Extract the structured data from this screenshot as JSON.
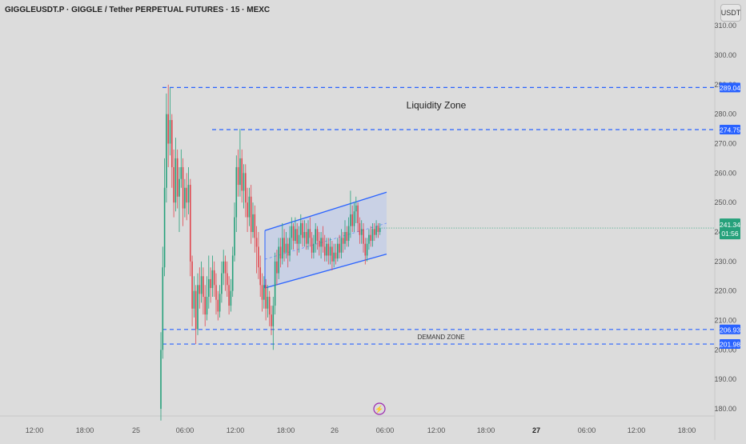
{
  "header": {
    "title": "GIGGLEUSDT.P · GIGGLE / Tether PERPETUAL FUTURES · 15 · MEXC",
    "currency": "USDT"
  },
  "colors": {
    "background": "#dcdcdc",
    "up": "#26a17b",
    "down": "#e0484f",
    "level": "#2962ff",
    "channel_fill": "#c3cde8"
  },
  "chart_data": {
    "type": "candlestick",
    "ylim": [
      175,
      313
    ],
    "y_ticks": [
      "180.00",
      "190.00",
      "200.00",
      "210.00",
      "220.00",
      "230.00",
      "240.00",
      "250.00",
      "260.00",
      "270.00",
      "280.00",
      "290.00",
      "300.00",
      "310.00"
    ],
    "x_ticks": [
      "12:00",
      "18:00",
      "25",
      "06:00",
      "12:00",
      "18:00",
      "26",
      "06:00",
      "12:00",
      "18:00",
      "27",
      "06:00",
      "12:00",
      "18:00"
    ],
    "x_ticks_bold": [
      "27"
    ],
    "levels": [
      {
        "price": 289.04,
        "label": "289.04",
        "start": "03:00 on 25"
      },
      {
        "price": 274.75,
        "label": "274.75",
        "start": "09:00 on 25"
      },
      {
        "price": 206.93,
        "label": "206.93",
        "start": "03:00 on 25"
      },
      {
        "price": 201.98,
        "label": "201.98",
        "start": "03:00 on 25"
      }
    ],
    "annotations": [
      {
        "text": "Liquidity Zone",
        "price": 283
      },
      {
        "text": "DEMAND ZONE",
        "price": 204.5
      }
    ],
    "last_price": {
      "value": "241.34",
      "countdown": "01:56"
    },
    "channel": {
      "upper": [
        240.5,
        253.5
      ],
      "lower": [
        221,
        232.5
      ]
    },
    "candles": [
      [
        180,
        200,
        206,
        176
      ],
      [
        200,
        228,
        235,
        197
      ],
      [
        228,
        255,
        265,
        225
      ],
      [
        255,
        280,
        287,
        250
      ],
      [
        280,
        270,
        290,
        262
      ],
      [
        270,
        278,
        289,
        266
      ],
      [
        278,
        262,
        280,
        255
      ],
      [
        262,
        250,
        268,
        245
      ],
      [
        250,
        265,
        272,
        247
      ],
      [
        265,
        252,
        268,
        248
      ],
      [
        252,
        258,
        262,
        240
      ],
      [
        258,
        262,
        268,
        255
      ],
      [
        262,
        248,
        265,
        242
      ],
      [
        248,
        255,
        258,
        245
      ],
      [
        255,
        250,
        260,
        244
      ],
      [
        250,
        256,
        262,
        246
      ],
      [
        256,
        230,
        258,
        225
      ],
      [
        230,
        214,
        232,
        208
      ],
      [
        214,
        220,
        225,
        211
      ],
      [
        220,
        207,
        222,
        202
      ],
      [
        207,
        222,
        226,
        205
      ],
      [
        222,
        219,
        228,
        214
      ],
      [
        219,
        225,
        230,
        216
      ],
      [
        225,
        218,
        228,
        212
      ],
      [
        218,
        212,
        222,
        208
      ],
      [
        212,
        218,
        225,
        210
      ],
      [
        218,
        224,
        232,
        214
      ],
      [
        224,
        221,
        228,
        216
      ],
      [
        221,
        227,
        232,
        218
      ],
      [
        227,
        222,
        230,
        218
      ],
      [
        222,
        217,
        226,
        212
      ],
      [
        217,
        213,
        220,
        210
      ],
      [
        213,
        219,
        222,
        211
      ],
      [
        219,
        226,
        230,
        216
      ],
      [
        226,
        230,
        234,
        222
      ],
      [
        230,
        226,
        232,
        220
      ],
      [
        226,
        222,
        230,
        218
      ],
      [
        222,
        215,
        225,
        212
      ],
      [
        215,
        220,
        224,
        213
      ],
      [
        220,
        232,
        235,
        218
      ],
      [
        232,
        245,
        250,
        230
      ],
      [
        245,
        262,
        266,
        240
      ],
      [
        262,
        256,
        268,
        252
      ],
      [
        256,
        265,
        275,
        252
      ],
      [
        265,
        254,
        268,
        250
      ],
      [
        254,
        260,
        263,
        248
      ],
      [
        260,
        250,
        263,
        245
      ],
      [
        250,
        245,
        255,
        240
      ],
      [
        245,
        252,
        255,
        242
      ],
      [
        252,
        240,
        256,
        236
      ],
      [
        240,
        246,
        250,
        238
      ],
      [
        246,
        238,
        249,
        233
      ],
      [
        238,
        235,
        242,
        226
      ],
      [
        235,
        228,
        240,
        224
      ],
      [
        228,
        222,
        232,
        218
      ],
      [
        222,
        217,
        226,
        213
      ],
      [
        217,
        222,
        225,
        214
      ],
      [
        222,
        214,
        224,
        210
      ],
      [
        214,
        218,
        222,
        211
      ],
      [
        218,
        212,
        220,
        208
      ],
      [
        212,
        208,
        215,
        205
      ],
      [
        208,
        215,
        218,
        200
      ],
      [
        215,
        230,
        233,
        212
      ],
      [
        230,
        226,
        234,
        222
      ],
      [
        226,
        235,
        238,
        224
      ],
      [
        235,
        231,
        238,
        228
      ],
      [
        231,
        238,
        243,
        229
      ],
      [
        238,
        233,
        241,
        230
      ],
      [
        233,
        236,
        240,
        231
      ],
      [
        236,
        232,
        238,
        228
      ],
      [
        232,
        238,
        242,
        230
      ],
      [
        238,
        242,
        245,
        234
      ],
      [
        242,
        237,
        243,
        234
      ],
      [
        237,
        241,
        245,
        236
      ],
      [
        241,
        236,
        243,
        232
      ],
      [
        236,
        239,
        242,
        233
      ],
      [
        239,
        243,
        246,
        236
      ],
      [
        243,
        238,
        244,
        235
      ],
      [
        238,
        240,
        244,
        235
      ],
      [
        240,
        236,
        243,
        234
      ],
      [
        236,
        241,
        244,
        234
      ],
      [
        241,
        238,
        245,
        235
      ],
      [
        238,
        233,
        240,
        231
      ],
      [
        233,
        236,
        239,
        231
      ],
      [
        236,
        241,
        243,
        233
      ],
      [
        241,
        237,
        242,
        234
      ],
      [
        237,
        235,
        240,
        232
      ],
      [
        235,
        238,
        240,
        231
      ],
      [
        238,
        235,
        242,
        233
      ],
      [
        235,
        232,
        239,
        230
      ],
      [
        232,
        236,
        238,
        230
      ],
      [
        236,
        232,
        238,
        229
      ],
      [
        232,
        235,
        238,
        229
      ],
      [
        235,
        230,
        237,
        227
      ],
      [
        230,
        233,
        236,
        228
      ],
      [
        233,
        231,
        236,
        229
      ],
      [
        231,
        236,
        238,
        230
      ],
      [
        236,
        233,
        239,
        231
      ],
      [
        233,
        238,
        241,
        231
      ],
      [
        238,
        236,
        240,
        233
      ],
      [
        236,
        240,
        244,
        234
      ],
      [
        240,
        237,
        242,
        235
      ],
      [
        237,
        242,
        245,
        235
      ],
      [
        242,
        246,
        254,
        238
      ],
      [
        246,
        242,
        249,
        240
      ],
      [
        242,
        247,
        250,
        240
      ],
      [
        247,
        249,
        252,
        243
      ],
      [
        249,
        243,
        250,
        240
      ],
      [
        243,
        239,
        245,
        236
      ],
      [
        239,
        241,
        244,
        236
      ],
      [
        241,
        236,
        243,
        233
      ],
      [
        236,
        232,
        238,
        229
      ],
      [
        232,
        236,
        238,
        230
      ],
      [
        236,
        239,
        241,
        234
      ],
      [
        239,
        237,
        242,
        235
      ],
      [
        237,
        241,
        243,
        235
      ],
      [
        241,
        239,
        243,
        237
      ],
      [
        239,
        242,
        244,
        238
      ],
      [
        242,
        240,
        243,
        238
      ],
      [
        240,
        241.34,
        243,
        239
      ]
    ]
  },
  "footer": {
    "bolt": "⚡"
  }
}
